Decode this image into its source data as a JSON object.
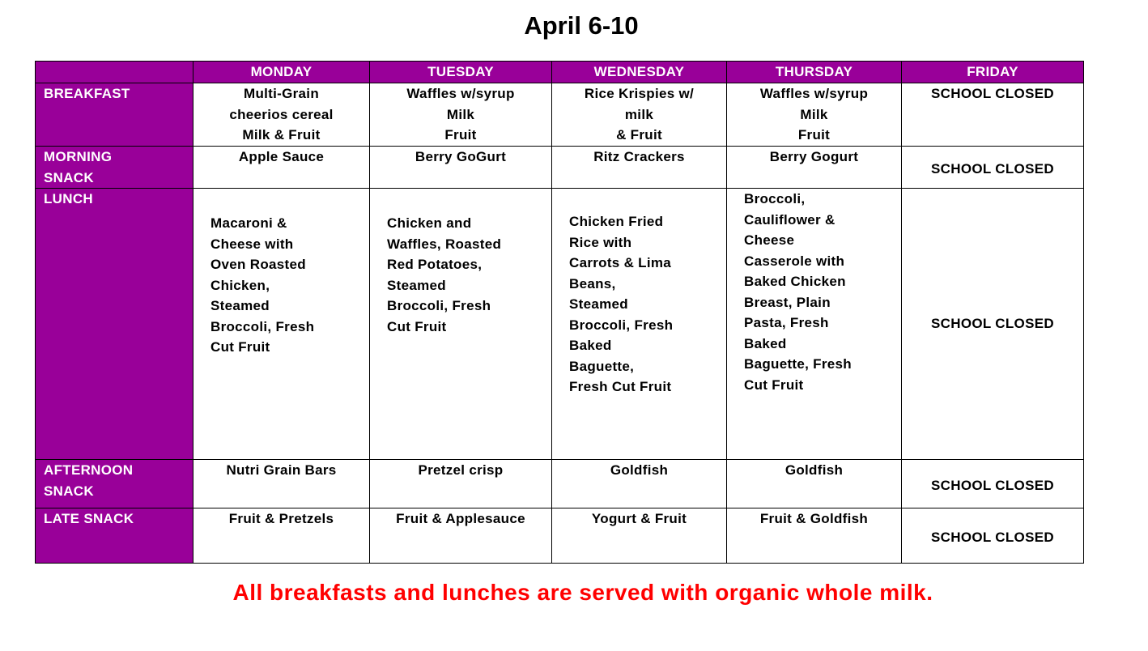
{
  "title": "April 6-10",
  "colors": {
    "header_purple": "#990099",
    "note_red": "#ff0000"
  },
  "days": [
    "MONDAY",
    "TUESDAY",
    "WEDNESDAY",
    "THURSDAY",
    "FRIDAY"
  ],
  "rows": [
    {
      "label": "BREAKFAST",
      "cells": [
        "Multi-Grain\ncheerios cereal\nMilk & Fruit",
        "Waffles w/syrup\nMilk\nFruit",
        "Rice Krispies w/\nmilk\n & Fruit",
        "Waffles w/syrup\nMilk\nFruit",
        "SCHOOL CLOSED"
      ]
    },
    {
      "label": "MORNING\nSNACK",
      "cells": [
        "Apple Sauce",
        "Berry GoGurt",
        "Ritz Crackers",
        "Berry Gogurt",
        "SCHOOL CLOSED"
      ]
    },
    {
      "label": "LUNCH",
      "cells": [
        " Macaroni &\nCheese with\nOven Roasted\nChicken,\nSteamed\nBroccoli, Fresh\nCut Fruit",
        " Chicken and\nWaffles, Roasted\nRed Potatoes,\nSteamed\nBroccoli, Fresh\nCut Fruit",
        "Chicken Fried\nRice with\nCarrots & Lima\nBeans,\nSteamed\nBroccoli, Fresh\nBaked\nBaguette,\nFresh Cut Fruit",
        "Broccoli,\nCauliflower &\nCheese\nCasserole with\nBaked Chicken\nBreast, Plain\nPasta, Fresh\nBaked\nBaguette, Fresh\nCut Fruit",
        "SCHOOL CLOSED"
      ]
    },
    {
      "label": "AFTERNOON\nSNACK",
      "cells": [
        "Nutri Grain Bars",
        "Pretzel crisp",
        "Goldfish",
        "Goldfish",
        "SCHOOL CLOSED"
      ]
    },
    {
      "label": "LATE SNACK",
      "cells": [
        "Fruit & Pretzels",
        "Fruit & Applesauce",
        "Yogurt & Fruit",
        "Fruit & Goldfish",
        "SCHOOL CLOSED"
      ]
    }
  ],
  "note": "All breakfasts and lunches are served with organic whole milk."
}
